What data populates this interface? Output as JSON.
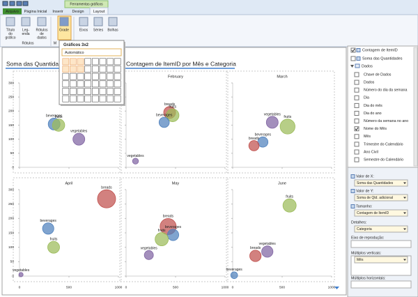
{
  "window": {
    "tabs": [
      "Arquivo",
      "Página Inicial",
      "Inserir",
      "Design",
      "Layout"
    ],
    "context_tab": "Ferramentas gráficos"
  },
  "ribbon": {
    "buttons": [
      [
        "Título",
        "do",
        "gráfico"
      ],
      [
        "Leg-",
        "enda"
      ],
      [
        "Rótulos",
        "de",
        "dados"
      ],
      [
        "Grade"
      ],
      [
        "Eixos"
      ],
      [
        "Séries"
      ],
      [
        "Bolhas"
      ]
    ],
    "groups": [
      "Rótulos",
      "M"
    ]
  },
  "grid_menu": {
    "title": "Gráficos 3x2",
    "auto": "Automático",
    "cols": 8,
    "rows": 6,
    "selected_cols": 3,
    "selected_rows": 2
  },
  "chart_title": [
    "Soma das Quantidades",
    "Contagem de ItemID por Mês e Categoria"
  ],
  "chart_data": [
    {
      "type": "bubble",
      "title": null,
      "xlim": [
        0,
        1000
      ],
      "ylim": [
        0,
        300
      ],
      "xticks": [
        0,
        500,
        1000
      ],
      "yticks": [
        0,
        50,
        100,
        150,
        200,
        250,
        300
      ],
      "series": [
        {
          "name": "beverages",
          "color": "#4f81bd",
          "x": [
            350
          ],
          "values": [
            154
          ],
          "sizes": [
            60
          ]
        },
        {
          "name": "fruits",
          "color": "#9bbb59",
          "x": [
            395
          ],
          "values": [
            150
          ],
          "sizes": [
            65
          ]
        },
        {
          "name": "vegetables",
          "color": "#8064a2",
          "x": [
            600
          ],
          "values": [
            100
          ],
          "sizes": [
            60
          ]
        }
      ]
    },
    {
      "type": "bubble",
      "title": "February",
      "xlim": [
        0,
        1000
      ],
      "ylim": [
        0,
        300
      ],
      "xticks": [
        0,
        500,
        1000
      ],
      "yticks": [
        0,
        50,
        100,
        150,
        200,
        250,
        300
      ],
      "series": [
        {
          "name": "breads",
          "color": "#c0504d",
          "x": [
            440
          ],
          "values": [
            195
          ],
          "sizes": [
            60
          ]
        },
        {
          "name": "fruits",
          "color": "#9bbb59",
          "x": [
            470
          ],
          "values": [
            185
          ],
          "sizes": [
            70
          ]
        },
        {
          "name": "beverages",
          "color": "#4f81bd",
          "x": [
            385
          ],
          "values": [
            160
          ],
          "sizes": [
            45
          ]
        },
        {
          "name": "vegetables",
          "color": "#8064a2",
          "x": [
            95
          ],
          "values": [
            22
          ],
          "sizes": [
            15
          ]
        }
      ]
    },
    {
      "type": "bubble",
      "title": "March",
      "xlim": [
        0,
        1000
      ],
      "ylim": [
        0,
        300
      ],
      "xticks": [
        0,
        500,
        1000
      ],
      "yticks": [
        0,
        50,
        100,
        150,
        200,
        250,
        300
      ],
      "series": [
        {
          "name": "vegetables",
          "color": "#8064a2",
          "x": [
            400
          ],
          "values": [
            160
          ],
          "sizes": [
            60
          ]
        },
        {
          "name": "fruits",
          "color": "#9bbb59",
          "x": [
            555
          ],
          "values": [
            145
          ],
          "sizes": [
            95
          ]
        },
        {
          "name": "beverages",
          "color": "#4f81bd",
          "x": [
            305
          ],
          "values": [
            90
          ],
          "sizes": [
            45
          ]
        },
        {
          "name": "breads",
          "color": "#c0504d",
          "x": [
            215
          ],
          "values": [
            77
          ],
          "sizes": [
            45
          ]
        }
      ]
    },
    {
      "type": "bubble",
      "title": "April",
      "xlim": [
        0,
        1000
      ],
      "ylim": [
        0,
        300
      ],
      "xticks": [
        0,
        500,
        1000
      ],
      "yticks": [
        0,
        50,
        100,
        150,
        200,
        250,
        300
      ],
      "series": [
        {
          "name": "breads",
          "color": "#c0504d",
          "x": [
            880
          ],
          "values": [
            268
          ],
          "sizes": [
            140
          ]
        },
        {
          "name": "beverages",
          "color": "#4f81bd",
          "x": [
            290
          ],
          "values": [
            165
          ],
          "sizes": [
            55
          ]
        },
        {
          "name": "fruits",
          "color": "#9bbb59",
          "x": [
            345
          ],
          "values": [
            100
          ],
          "sizes": [
            60
          ]
        },
        {
          "name": "vegetables",
          "color": "#8064a2",
          "x": [
            15
          ],
          "values": [
            5
          ],
          "sizes": [
            8
          ]
        }
      ]
    },
    {
      "type": "bubble",
      "title": "May",
      "xlim": [
        0,
        1000
      ],
      "ylim": [
        0,
        300
      ],
      "xticks": [
        0,
        500,
        1000
      ],
      "yticks": [
        0,
        50,
        100,
        150,
        200,
        250,
        300
      ],
      "series": [
        {
          "name": "breads",
          "color": "#c0504d",
          "x": [
            425
          ],
          "values": [
            172
          ],
          "sizes": [
            110
          ]
        },
        {
          "name": "beverages",
          "color": "#4f81bd",
          "x": [
            475
          ],
          "values": [
            143
          ],
          "sizes": [
            55
          ]
        },
        {
          "name": "fruits",
          "color": "#9bbb59",
          "x": [
            360
          ],
          "values": [
            128
          ],
          "sizes": [
            75
          ]
        },
        {
          "name": "vegetables",
          "color": "#8064a2",
          "x": [
            230
          ],
          "values": [
            73
          ],
          "sizes": [
            35
          ]
        }
      ]
    },
    {
      "type": "bubble",
      "title": "June",
      "xlim": [
        0,
        1000
      ],
      "ylim": [
        0,
        300
      ],
      "xticks": [
        0,
        500,
        1000
      ],
      "yticks": [
        0,
        50,
        100,
        150,
        200,
        250,
        300
      ],
      "series": [
        {
          "name": "fruits",
          "color": "#9bbb59",
          "x": [
            575
          ],
          "values": [
            245
          ],
          "sizes": [
            75
          ]
        },
        {
          "name": "vegetables",
          "color": "#8064a2",
          "x": [
            350
          ],
          "values": [
            85
          ],
          "sizes": [
            55
          ]
        },
        {
          "name": "breads",
          "color": "#c0504d",
          "x": [
            230
          ],
          "values": [
            70
          ],
          "sizes": [
            55
          ]
        },
        {
          "name": "beverages",
          "color": "#4f81bd",
          "x": [
            15
          ],
          "values": [
            3
          ],
          "sizes": [
            20
          ]
        }
      ]
    }
  ],
  "field_list": {
    "measures": [
      {
        "label": "Contagem de ItemID",
        "checked": true
      },
      {
        "label": "Soma das Quantidades",
        "checked": false
      }
    ],
    "table": "Dados",
    "fields": [
      {
        "label": "Chave de Dados",
        "checked": false
      },
      {
        "label": "Dados",
        "checked": false
      },
      {
        "label": "Número do dia da semana",
        "checked": false
      },
      {
        "label": "Dia",
        "checked": false
      },
      {
        "label": "Dia do mês",
        "checked": false
      },
      {
        "label": "Dia do ano",
        "checked": false
      },
      {
        "label": "Número da semana no ano",
        "checked": false
      },
      {
        "label": "Nome do Mês",
        "checked": true
      },
      {
        "label": "Mês",
        "checked": false
      },
      {
        "label": "Trimestre do Calendário",
        "checked": false
      },
      {
        "label": "Ano Civil",
        "checked": false
      },
      {
        "label": "Semestre do Calendário",
        "checked": false
      }
    ]
  },
  "wells": [
    {
      "label": "Valor de X:",
      "value": "Soma das Quantidades"
    },
    {
      "label": "Valor de Y:",
      "value": "Soma de Qtd. adicional"
    },
    {
      "label": "Tamanho:",
      "value": "Contagem de ItemID"
    },
    {
      "label": "Detalhes:",
      "value": "Categoria"
    },
    {
      "label": "Eixo de reprodução:",
      "value": null
    },
    {
      "label": "Múltiplos verticais:",
      "value": "Mês"
    },
    {
      "label": "Múltiplos horizontais:",
      "value": null
    }
  ]
}
